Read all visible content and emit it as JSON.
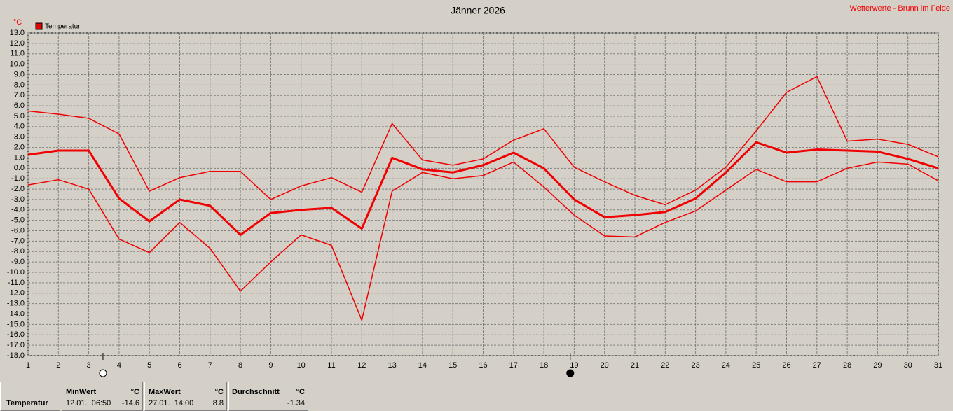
{
  "chart_data": {
    "type": "line",
    "title": "Jänner 2026",
    "source": "Wetterwerte - Brunn im Felde",
    "y_unit": "°C",
    "legend": {
      "label": "Temperatur",
      "color": "#e00000"
    },
    "x": [
      1,
      2,
      3,
      4,
      5,
      6,
      7,
      8,
      9,
      10,
      11,
      12,
      13,
      14,
      15,
      16,
      17,
      18,
      19,
      20,
      21,
      22,
      23,
      24,
      25,
      26,
      27,
      28,
      29,
      30,
      31
    ],
    "series": [
      {
        "color": "#f00000",
        "width": 1.5,
        "values": [
          5.5,
          5.2,
          4.8,
          3.3,
          -2.2,
          -0.9,
          -0.3,
          -0.3,
          -3.0,
          -1.7,
          -0.9,
          -2.3,
          4.3,
          0.8,
          0.3,
          0.9,
          2.7,
          3.8,
          0.1,
          -1.3,
          -2.6,
          -3.5,
          -2.1,
          0.1,
          3.6,
          7.3,
          8.8,
          2.6,
          2.8,
          2.3,
          1.1
        ]
      },
      {
        "color": "#f00000",
        "width": 3,
        "values": [
          1.3,
          1.7,
          1.7,
          -2.9,
          -5.1,
          -3.0,
          -3.6,
          -6.4,
          -4.3,
          -4.0,
          -3.8,
          -5.8,
          1.0,
          -0.1,
          -0.4,
          0.3,
          1.5,
          0.0,
          -3.0,
          -4.7,
          -4.5,
          -4.2,
          -2.9,
          -0.4,
          2.5,
          1.5,
          1.8,
          1.7,
          1.6,
          0.9,
          0.0
        ]
      },
      {
        "color": "#f00000",
        "width": 1.5,
        "values": [
          -1.6,
          -1.1,
          -2.0,
          -6.8,
          -8.1,
          -5.2,
          -7.7,
          -11.8,
          -9.0,
          -6.4,
          -7.4,
          -14.6,
          -2.2,
          -0.4,
          -1.0,
          -0.7,
          0.6,
          -1.8,
          -4.5,
          -6.5,
          -6.6,
          -5.2,
          -4.1,
          -2.1,
          -0.1,
          -1.3,
          -1.3,
          0.0,
          0.6,
          0.4,
          -1.2
        ]
      }
    ],
    "markers": [
      {
        "x": 3.47,
        "style": "open"
      },
      {
        "x": 18.87,
        "style": "filled"
      }
    ],
    "xlim": [
      1,
      31
    ],
    "xticks": [
      1,
      2,
      3,
      4,
      5,
      6,
      7,
      8,
      9,
      10,
      11,
      12,
      13,
      14,
      15,
      16,
      17,
      18,
      19,
      20,
      21,
      22,
      23,
      24,
      25,
      26,
      27,
      28,
      29,
      30,
      31
    ],
    "ylim": [
      -18,
      13
    ],
    "yticks": [
      {
        "value": 13,
        "label": "13.0"
      },
      {
        "value": 12,
        "label": "12.0"
      },
      {
        "value": 11,
        "label": "11.0"
      },
      {
        "value": 10,
        "label": "10.0"
      },
      {
        "value": 9,
        "label": "9.0"
      },
      {
        "value": 8,
        "label": "8.0"
      },
      {
        "value": 7,
        "label": "7.0"
      },
      {
        "value": 6,
        "label": "6.0"
      },
      {
        "value": 5,
        "label": "5.0"
      },
      {
        "value": 4,
        "label": "4.0"
      },
      {
        "value": 3,
        "label": "3.0"
      },
      {
        "value": 2,
        "label": "2.0"
      },
      {
        "value": 1,
        "label": "1.0"
      },
      {
        "value": 0,
        "label": "0.0"
      },
      {
        "value": -1,
        "label": "-1.0"
      },
      {
        "value": -2,
        "label": "-2.0"
      },
      {
        "value": -3,
        "label": "-3.0"
      },
      {
        "value": -4,
        "label": "-4.0"
      },
      {
        "value": -5,
        "label": "-5.0"
      },
      {
        "value": -6,
        "label": "-6.0"
      },
      {
        "value": -7,
        "label": "-7.0"
      },
      {
        "value": -8,
        "label": "-8.0"
      },
      {
        "value": -9,
        "label": "-9.0"
      },
      {
        "value": -10,
        "label": "-10.0"
      },
      {
        "value": -11,
        "label": "-11.0"
      },
      {
        "value": -12,
        "label": "-12.0"
      },
      {
        "value": -13,
        "label": "-13.0"
      },
      {
        "value": -14,
        "label": "-14.0"
      },
      {
        "value": -15,
        "label": "-15.0"
      },
      {
        "value": -16,
        "label": "-16.0"
      },
      {
        "value": -17,
        "label": "-17.0"
      },
      {
        "value": -18,
        "label": "-18.0"
      }
    ],
    "grid": true
  },
  "stats_table": {
    "row_label": "Temperatur",
    "min": {
      "header": "MinWert",
      "unit": "°C",
      "time": "12.01.  06:50",
      "value": "-14.6"
    },
    "max": {
      "header": "MaxWert",
      "unit": "°C",
      "time": "27.01.  14:00",
      "value": "8.8"
    },
    "avg": {
      "header": "Durchschnitt",
      "unit": "°C",
      "value": "-1.34"
    }
  }
}
